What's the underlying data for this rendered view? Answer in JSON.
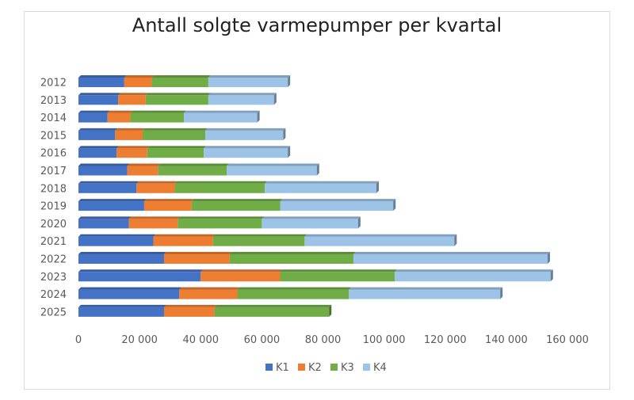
{
  "chart_data": {
    "type": "bar",
    "orientation": "horizontal",
    "stacked": true,
    "title": "Antall solgte varmepumper per kvartal",
    "xlabel": "",
    "ylabel": "",
    "categories": [
      "2012",
      "2013",
      "2014",
      "2015",
      "2016",
      "2017",
      "2018",
      "2019",
      "2020",
      "2021",
      "2022",
      "2023",
      "2024",
      "2025"
    ],
    "x_ticks": [
      "0",
      "20 000",
      "40 000",
      "60 000",
      "80 000",
      "100 000",
      "120 000",
      "140 000",
      "160 000"
    ],
    "xlim": [
      0,
      160000
    ],
    "grid": false,
    "legend_position": "bottom",
    "series": [
      {
        "name": "K1",
        "color": "#4472c4",
        "values": [
          15000,
          13000,
          9500,
          12000,
          12500,
          16000,
          19000,
          21500,
          16500,
          24500,
          28000,
          40000,
          33000,
          28000
        ]
      },
      {
        "name": "K2",
        "color": "#ed7d31",
        "values": [
          9000,
          9000,
          7500,
          9000,
          10000,
          10000,
          12500,
          15500,
          16000,
          19500,
          21500,
          26000,
          19000,
          16500
        ]
      },
      {
        "name": "K3",
        "color": "#70ad47",
        "values": [
          18500,
          20500,
          17500,
          20500,
          18500,
          22500,
          29500,
          29000,
          27500,
          30000,
          40500,
          37500,
          36500,
          37500
        ]
      },
      {
        "name": "K4",
        "color": "#9dc3e6",
        "values": [
          26000,
          21500,
          24000,
          25500,
          27500,
          29500,
          36500,
          37000,
          31500,
          49000,
          63500,
          51000,
          49500,
          0
        ]
      }
    ]
  }
}
